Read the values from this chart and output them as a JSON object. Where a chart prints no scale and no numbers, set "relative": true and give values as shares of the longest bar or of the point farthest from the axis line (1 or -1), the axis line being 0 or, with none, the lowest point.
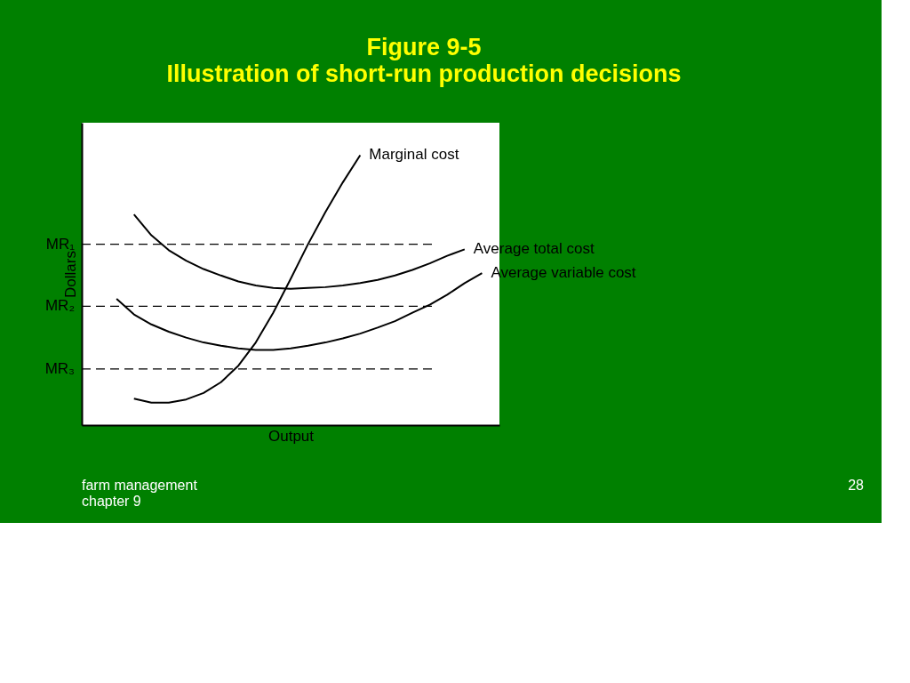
{
  "chart_data": {
    "type": "line",
    "title": "Figure 9-5",
    "subtitle": "Illustration of short-run production decisions",
    "xlabel": "Output",
    "ylabel": "Dollars",
    "relative": true,
    "legend": false,
    "grid": false,
    "marker": "none",
    "line_style": "solid",
    "categories": [
      null,
      null,
      null,
      null,
      null,
      null,
      null,
      null,
      null,
      null,
      null,
      null,
      null,
      null,
      null,
      null,
      null,
      null,
      null,
      null,
      null,
      null,
      null,
      null,
      null
    ],
    "series": [
      {
        "name": "Marginal cost",
        "color": "#000000",
        "values": [
          null,
          null,
          null,
          0.098,
          0.083,
          0.083,
          0.095,
          0.119,
          0.159,
          0.22,
          0.306,
          0.416,
          0.541,
          0.67,
          0.789,
          0.899,
          1,
          null,
          null,
          null,
          null,
          null,
          null,
          null,
          null
        ]
      },
      {
        "name": "Average total cost",
        "color": "#000000",
        "values": [
          null,
          null,
          null,
          0.78,
          0.703,
          0.648,
          0.609,
          0.578,
          0.554,
          0.532,
          0.517,
          0.508,
          0.505,
          0.508,
          0.511,
          0.517,
          0.526,
          0.538,
          0.554,
          0.575,
          0.599,
          0.627,
          0.651,
          null,
          null
        ]
      },
      {
        "name": "Average variable cost",
        "color": "#000000",
        "values": [
          null,
          null,
          0.468,
          0.41,
          0.373,
          0.346,
          0.324,
          0.306,
          0.294,
          0.284,
          0.278,
          0.278,
          0.284,
          0.294,
          0.306,
          0.321,
          0.339,
          0.361,
          0.385,
          0.416,
          0.446,
          0.483,
          0.526,
          0.563,
          null
        ]
      }
    ],
    "ref_lines": [
      {
        "axis": "y",
        "value": 0.67,
        "label": "MR₁",
        "color": "#000000",
        "line_style": "dashed"
      },
      {
        "axis": "y",
        "value": 0.44,
        "label": "MR₂",
        "color": "#000000",
        "line_style": "dashed"
      },
      {
        "axis": "y",
        "value": 0.208,
        "label": "MR₃",
        "color": "#000000",
        "line_style": "dashed"
      }
    ],
    "annotations": [
      "farm management\nchapter 9",
      "28"
    ]
  }
}
